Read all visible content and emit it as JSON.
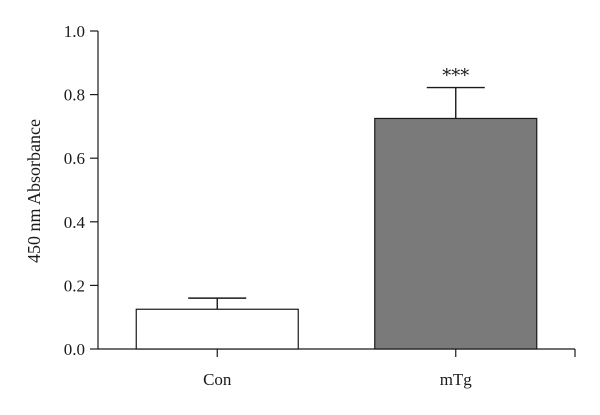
{
  "chart_data": {
    "type": "bar",
    "title": "",
    "xlabel": "",
    "ylabel": "450 nm Absorbance",
    "categories": [
      "Con",
      "mTg"
    ],
    "values": [
      0.125,
      0.725
    ],
    "errors": [
      0.035,
      0.097
    ],
    "annotations": [
      "",
      "***"
    ],
    "ylim": [
      0,
      1.0
    ],
    "yticks": [
      "0.0",
      "0.2",
      "0.4",
      "0.6",
      "0.8",
      "1.0"
    ],
    "grid": false,
    "legend": "none",
    "bar_colors": [
      "#ffffff",
      "#7a7a7a"
    ],
    "edge_color": "#1a1a1a"
  }
}
